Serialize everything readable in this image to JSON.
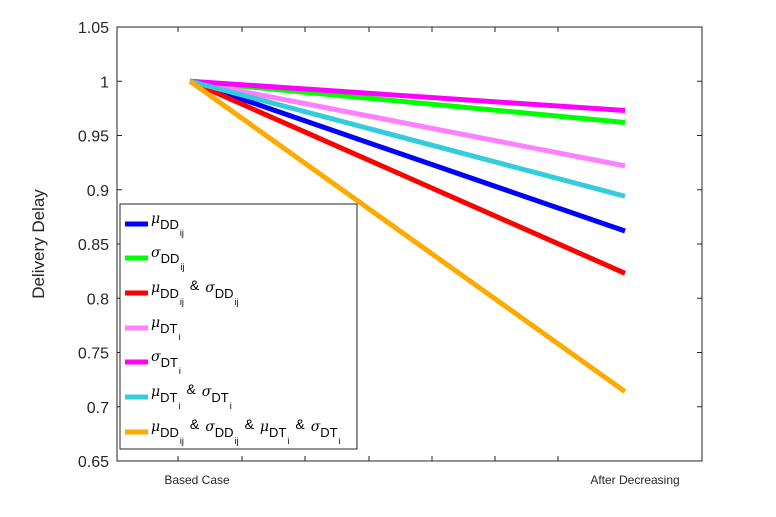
{
  "chart_data": {
    "type": "line",
    "title": "",
    "xlabel": "",
    "ylabel": "Delivery Delay",
    "categories": [
      "Based Case",
      "After Decreasing"
    ],
    "ylim": [
      0.65,
      1.05
    ],
    "yticks": [
      "0.65",
      "0.7",
      "0.75",
      "0.8",
      "0.85",
      "0.9",
      "0.95",
      "1",
      "1.05"
    ],
    "grid": false,
    "legend_position": "bottom-left",
    "series": [
      {
        "name": "μ_DD_ij",
        "color": "#0000ff",
        "values": [
          1,
          0.862
        ],
        "legend": [
          [
            "μ",
            "DD",
            "ij"
          ]
        ]
      },
      {
        "name": "σ_DD_ij",
        "color": "#00ff00",
        "values": [
          1,
          0.962
        ],
        "legend": [
          [
            "σ",
            "DD",
            "ij"
          ]
        ]
      },
      {
        "name": "μ_DD_ij & σ_DD_ij",
        "color": "#ff0000",
        "values": [
          1,
          0.823
        ],
        "legend": [
          [
            "μ",
            "DD",
            "ij"
          ],
          [
            "σ",
            "DD",
            "ij"
          ]
        ]
      },
      {
        "name": "μ_DT_i",
        "color": "#ff80ff",
        "values": [
          1,
          0.922
        ],
        "legend": [
          [
            "μ",
            "DT",
            "i"
          ]
        ]
      },
      {
        "name": "σ_DT_i",
        "color": "#ff00ff",
        "values": [
          1,
          0.973
        ],
        "legend": [
          [
            "σ",
            "DT",
            "i"
          ]
        ]
      },
      {
        "name": "μ_DT_i & σ_DT_i",
        "color": "#33ccdd",
        "values": [
          1,
          0.894
        ],
        "legend": [
          [
            "μ",
            "DT",
            "i"
          ],
          [
            "σ",
            "DT",
            "i"
          ]
        ]
      },
      {
        "name": "μ_DD_ij & σ_DD_ij & μ_DT_i & σ_DT_i",
        "color": "#ffaa00",
        "values": [
          1,
          0.714
        ],
        "legend": [
          [
            "μ",
            "DD",
            "ij"
          ],
          [
            "σ",
            "DD",
            "ij"
          ],
          [
            "μ",
            "DT",
            "i"
          ],
          [
            "σ",
            "DT",
            "i"
          ]
        ]
      }
    ],
    "legend_separator": "&"
  }
}
